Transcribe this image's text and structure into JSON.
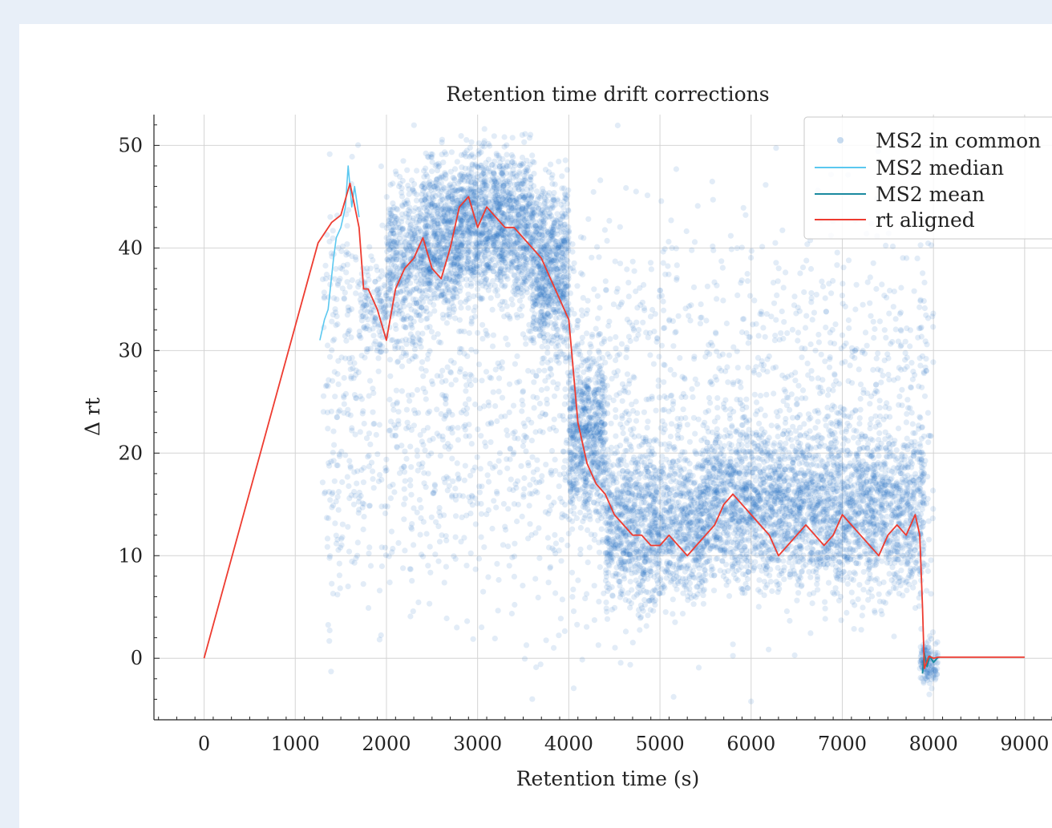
{
  "chart_data": {
    "type": "scatter",
    "title": "Retention time drift corrections",
    "xlabel": "Retention time (s)",
    "ylabel": "Δ rt",
    "xlim": [
      -550,
      9300
    ],
    "ylim": [
      -6,
      53
    ],
    "xticks": [
      0,
      1000,
      2000,
      3000,
      4000,
      5000,
      6000,
      7000,
      8000,
      9000
    ],
    "yticks": [
      0,
      10,
      20,
      30,
      40,
      50
    ],
    "grid": true,
    "legend": {
      "placement": "top-right",
      "entries": [
        "MS2 in common",
        "MS2 median",
        "MS2 mean",
        "rt aligned"
      ]
    },
    "colors": {
      "scatter": "#1f6fc5",
      "median": "#5bc8f0",
      "mean": "#1a8aa0",
      "aligned": "#ee3b30"
    },
    "series": [
      {
        "name": "MS2 in common",
        "kind": "scatter",
        "density": [
          {
            "x": [
              1300,
              1700
            ],
            "y": [
              28,
              46
            ],
            "n": 40
          },
          {
            "x": [
              1700,
              2000
            ],
            "y": [
              28,
              40
            ],
            "n": 120
          },
          {
            "x": [
              2000,
              2400
            ],
            "y": [
              28,
              50
            ],
            "n": 450
          },
          {
            "x": [
              2400,
              2800
            ],
            "y": [
              30,
              52
            ],
            "n": 650
          },
          {
            "x": [
              2800,
              3600
            ],
            "y": [
              32,
              53
            ],
            "n": 1300
          },
          {
            "x": [
              3600,
              4000
            ],
            "y": [
              26,
              50
            ],
            "n": 750
          },
          {
            "x": [
              4000,
              4400
            ],
            "y": [
              10,
              34
            ],
            "n": 650
          },
          {
            "x": [
              4400,
              5500
            ],
            "y": [
              2,
              24
            ],
            "n": 1300
          },
          {
            "x": [
              5500,
              6500
            ],
            "y": [
              4,
              26
            ],
            "n": 1150
          },
          {
            "x": [
              6500,
              7900
            ],
            "y": [
              3,
              26
            ],
            "n": 1500
          },
          {
            "x": [
              7850,
              8050
            ],
            "y": [
              -4,
              3
            ],
            "n": 130
          },
          {
            "x": [
              1300,
              8000
            ],
            "y": [
              -6,
              53
            ],
            "n": 2400
          }
        ]
      },
      {
        "name": "MS2 median",
        "kind": "line",
        "x": [
          1270,
          1320,
          1360,
          1420,
          1450,
          1500,
          1550,
          1580,
          1620,
          1650,
          1700
        ],
        "y": [
          31,
          33,
          34,
          39,
          41,
          42,
          44,
          48,
          44,
          46,
          43
        ]
      },
      {
        "name": "MS2 mean",
        "kind": "line",
        "x": [
          7880,
          7900,
          7930,
          7960,
          8000,
          8050
        ],
        "y": [
          -1.5,
          0.5,
          -0.8,
          0.2,
          -0.4,
          0.1
        ]
      },
      {
        "name": "rt aligned",
        "kind": "line",
        "x": [
          0,
          1250,
          1400,
          1500,
          1600,
          1700,
          1750,
          1800,
          1900,
          2000,
          2100,
          2200,
          2300,
          2400,
          2500,
          2600,
          2700,
          2800,
          2900,
          3000,
          3100,
          3200,
          3300,
          3400,
          3500,
          3600,
          3700,
          3800,
          3900,
          4000,
          4100,
          4200,
          4300,
          4400,
          4500,
          4600,
          4700,
          4800,
          4900,
          5000,
          5100,
          5200,
          5300,
          5400,
          5500,
          5600,
          5700,
          5800,
          5900,
          6000,
          6100,
          6200,
          6300,
          6400,
          6500,
          6600,
          6700,
          6800,
          6900,
          7000,
          7100,
          7200,
          7300,
          7400,
          7500,
          7600,
          7700,
          7800,
          7850,
          7880,
          7900,
          7950,
          8000,
          8050,
          9000
        ],
        "y": [
          0,
          40.5,
          42.5,
          43.2,
          46.3,
          42,
          36,
          36,
          34,
          31,
          36,
          38,
          39,
          41,
          38,
          37,
          40,
          44,
          45,
          42,
          44,
          43,
          42,
          42,
          41,
          40,
          39,
          37,
          35,
          33,
          23,
          19,
          17,
          16,
          14,
          13,
          12,
          12,
          11,
          11,
          12,
          11,
          10,
          11,
          12,
          13,
          15,
          16,
          15,
          14,
          13,
          12,
          10,
          11,
          12,
          13,
          12,
          11,
          12,
          14,
          13,
          12,
          11,
          10,
          12,
          13,
          12,
          14,
          12,
          5,
          -1,
          0.2,
          0,
          0.1,
          0.1
        ]
      }
    ]
  }
}
